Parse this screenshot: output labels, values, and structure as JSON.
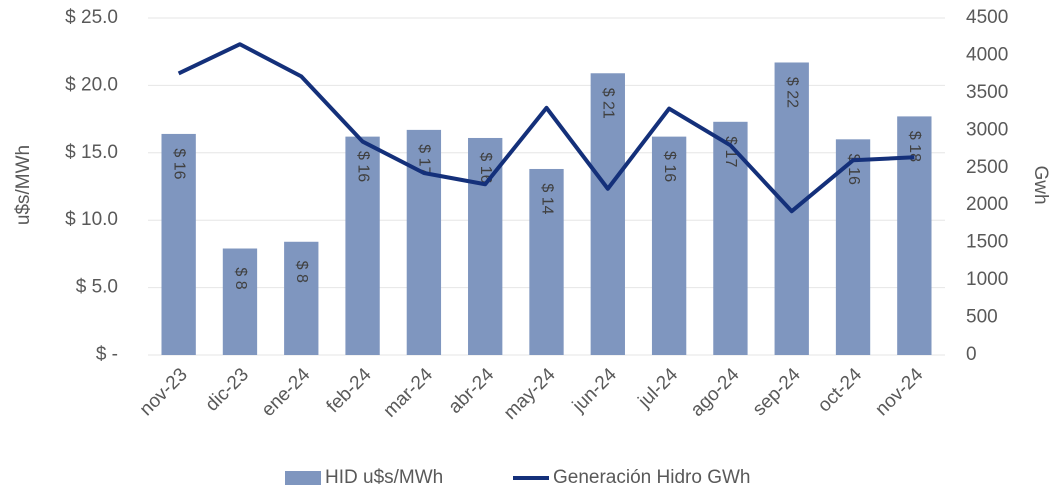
{
  "chart_data": {
    "type": "bar_line",
    "categories": [
      "nov-23",
      "dic-23",
      "ene-24",
      "feb-24",
      "mar-24",
      "abr-24",
      "may-24",
      "jun-24",
      "jul-24",
      "ago-24",
      "sep-24",
      "oct-24",
      "nov-24"
    ],
    "series": [
      {
        "name": "HID u$s/MWh",
        "type": "bar",
        "color": "#7f96bf",
        "values": [
          16.4,
          7.9,
          8.4,
          16.2,
          16.7,
          16.1,
          13.8,
          20.9,
          16.2,
          17.3,
          21.7,
          16.0,
          17.7
        ],
        "value_labels": [
          "$ 16",
          "$ 8",
          "$ 8",
          "$ 16",
          "$ 17",
          "$ 16",
          "$ 14",
          "$ 21",
          "$ 16",
          "$ 17",
          "$ 22",
          "$ 16",
          "$ 18"
        ]
      },
      {
        "name": "Generación Hidro GWh",
        "type": "line",
        "axis": "y2",
        "color": "#14307a",
        "values": [
          3760,
          4150,
          3720,
          2850,
          2430,
          2280,
          3300,
          2220,
          3290,
          2800,
          1920,
          2600,
          2640
        ]
      }
    ],
    "ylabel": "u$s/MWh",
    "y2label": "Gwh",
    "ylim": [
      0,
      25
    ],
    "yticks": [
      {
        "value": 0,
        "label": "$ -"
      },
      {
        "value": 5,
        "label": "$ 5.0"
      },
      {
        "value": 10,
        "label": "$ 10.0"
      },
      {
        "value": 15,
        "label": "$ 15.0"
      },
      {
        "value": 20,
        "label": "$ 20.0"
      },
      {
        "value": 25,
        "label": "$ 25.0"
      }
    ],
    "y2lim": [
      0,
      4500
    ],
    "y2ticks": [
      0,
      500,
      1000,
      1500,
      2000,
      2500,
      3000,
      3500,
      4000,
      4500
    ],
    "grid": true,
    "legend": "bottom"
  }
}
